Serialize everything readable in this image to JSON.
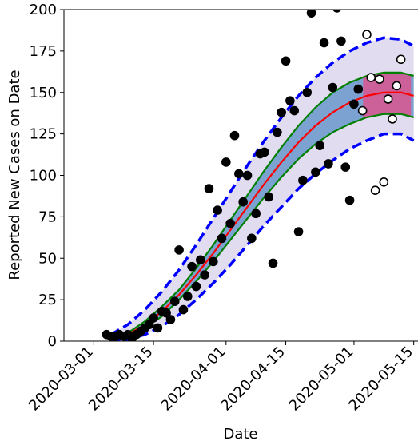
{
  "chart_data": {
    "type": "line",
    "ylabel": "Reported New Cases on Date",
    "xlabel": "Date",
    "xlim": [
      "2020-02-23",
      "2020-05-16"
    ],
    "ylim": [
      0,
      200
    ],
    "xticks": [
      "2020-03-01",
      "2020-03-15",
      "2020-04-01",
      "2020-04-15",
      "2020-05-01",
      "2020-05-15"
    ],
    "yticks": [
      0,
      25,
      50,
      75,
      100,
      125,
      150,
      175,
      200
    ],
    "series": [
      {
        "mode": "line",
        "color": "#0000ff",
        "dash": true,
        "x": [
          "2020-03-05",
          "2020-03-09",
          "2020-03-13",
          "2020-03-17",
          "2020-03-21",
          "2020-03-25",
          "2020-03-29",
          "2020-04-02",
          "2020-04-06",
          "2020-04-10",
          "2020-04-14",
          "2020-04-18",
          "2020-04-22",
          "2020-04-26",
          "2020-04-30",
          "2020-05-04",
          "2020-05-08",
          "2020-05-12",
          "2020-05-15"
        ],
        "values": [
          4,
          10,
          19,
          30,
          43,
          58,
          74,
          90,
          106,
          121,
          135,
          148,
          159,
          168,
          175,
          180,
          183,
          182,
          178
        ]
      },
      {
        "mode": "line",
        "color": "#0000ff",
        "dash": true,
        "x": [
          "2020-03-05",
          "2020-03-09",
          "2020-03-13",
          "2020-03-17",
          "2020-03-21",
          "2020-03-25",
          "2020-03-29",
          "2020-04-02",
          "2020-04-06",
          "2020-04-10",
          "2020-04-14",
          "2020-04-18",
          "2020-04-22",
          "2020-04-26",
          "2020-04-30",
          "2020-05-04",
          "2020-05-08",
          "2020-05-12",
          "2020-05-15"
        ],
        "values": [
          0,
          1,
          4,
          9,
          16,
          25,
          35,
          46,
          58,
          70,
          81,
          92,
          101,
          109,
          116,
          121,
          125,
          125,
          121
        ]
      },
      {
        "mode": "line",
        "color": "#008000",
        "dash": false,
        "x": [
          "2020-03-05",
          "2020-03-09",
          "2020-03-13",
          "2020-03-17",
          "2020-03-21",
          "2020-03-25",
          "2020-03-29",
          "2020-04-02",
          "2020-04-06",
          "2020-04-10",
          "2020-04-14",
          "2020-04-18",
          "2020-04-22",
          "2020-04-26",
          "2020-04-30",
          "2020-05-04",
          "2020-05-08",
          "2020-05-12",
          "2020-05-15"
        ],
        "values": [
          1,
          5,
          12,
          21,
          31,
          44,
          58,
          73,
          88,
          103,
          117,
          130,
          141,
          150,
          156,
          160,
          162,
          162,
          160
        ]
      },
      {
        "mode": "line",
        "color": "#008000",
        "dash": false,
        "x": [
          "2020-03-05",
          "2020-03-09",
          "2020-03-13",
          "2020-03-17",
          "2020-03-21",
          "2020-03-25",
          "2020-03-29",
          "2020-04-02",
          "2020-04-06",
          "2020-04-10",
          "2020-04-14",
          "2020-04-18",
          "2020-04-22",
          "2020-04-26",
          "2020-04-30",
          "2020-05-04",
          "2020-05-08",
          "2020-05-12",
          "2020-05-15"
        ],
        "values": [
          1,
          3,
          8,
          15,
          25,
          36,
          48,
          61,
          74,
          87,
          99,
          110,
          119,
          126,
          131,
          135,
          137,
          137,
          135
        ]
      },
      {
        "mode": "line",
        "color": "#ff0000",
        "dash": false,
        "x": [
          "2020-03-05",
          "2020-03-09",
          "2020-03-13",
          "2020-03-17",
          "2020-03-21",
          "2020-03-25",
          "2020-03-29",
          "2020-04-02",
          "2020-04-06",
          "2020-04-10",
          "2020-04-14",
          "2020-04-18",
          "2020-04-22",
          "2020-04-26",
          "2020-04-30",
          "2020-05-04",
          "2020-05-08",
          "2020-05-12",
          "2020-05-15"
        ],
        "values": [
          1,
          4,
          10,
          18,
          28,
          40,
          53,
          67,
          81,
          95,
          108,
          120,
          130,
          138,
          144,
          148,
          150,
          150,
          148
        ]
      },
      {
        "mode": "markers",
        "color": "#000000",
        "x": [
          "2020-03-04",
          "2020-03-05",
          "2020-03-06",
          "2020-03-07",
          "2020-03-08",
          "2020-03-09",
          "2020-03-10",
          "2020-03-11",
          "2020-03-12",
          "2020-03-13",
          "2020-03-14",
          "2020-03-15",
          "2020-03-16",
          "2020-03-17",
          "2020-03-18",
          "2020-03-19",
          "2020-03-20",
          "2020-03-21",
          "2020-03-22",
          "2020-03-23",
          "2020-03-24",
          "2020-03-25",
          "2020-03-26",
          "2020-03-27",
          "2020-03-28",
          "2020-03-29",
          "2020-03-30",
          "2020-03-31",
          "2020-04-01",
          "2020-04-02",
          "2020-04-03",
          "2020-04-04",
          "2020-04-05",
          "2020-04-06",
          "2020-04-07",
          "2020-04-08",
          "2020-04-09",
          "2020-04-10",
          "2020-04-11",
          "2020-04-12",
          "2020-04-13",
          "2020-04-14",
          "2020-04-15",
          "2020-04-16",
          "2020-04-17",
          "2020-04-18",
          "2020-04-19",
          "2020-04-20",
          "2020-04-21",
          "2020-04-22",
          "2020-04-23",
          "2020-04-24",
          "2020-04-25",
          "2020-04-26",
          "2020-04-27",
          "2020-04-28",
          "2020-04-29",
          "2020-04-30",
          "2020-05-01",
          "2020-05-02"
        ],
        "values": [
          4,
          3,
          3,
          4,
          3,
          4,
          2,
          4,
          6,
          8,
          10,
          14,
          8,
          18,
          17,
          13,
          24,
          55,
          19,
          27,
          45,
          33,
          49,
          40,
          92,
          48,
          79,
          62,
          108,
          71,
          124,
          101,
          84,
          100,
          62,
          77,
          113,
          114,
          87,
          47,
          126,
          138,
          169,
          145,
          139,
          66,
          97,
          150,
          198,
          102,
          118,
          180,
          107,
          153,
          201,
          181,
          105,
          85,
          143,
          152
        ]
      },
      {
        "mode": "markers",
        "color": "#ffffff",
        "x": [
          "2020-05-03",
          "2020-05-04",
          "2020-05-05",
          "2020-05-06",
          "2020-05-07",
          "2020-05-08",
          "2020-05-09",
          "2020-05-10",
          "2020-05-11",
          "2020-05-12"
        ],
        "values": [
          139,
          185,
          159,
          91,
          158,
          96,
          146,
          134,
          154,
          170
        ]
      }
    ]
  }
}
